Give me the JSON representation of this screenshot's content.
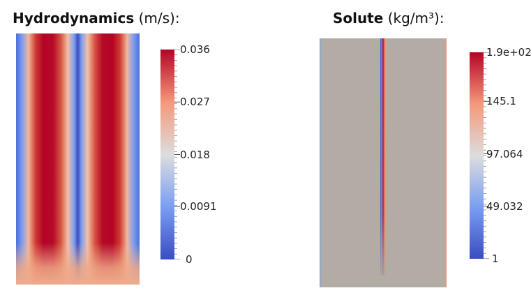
{
  "panels": [
    {
      "title": "Hydrodynamics",
      "unit": "(m/s):"
    },
    {
      "title": "Solute",
      "unit": "(kg/m³):"
    }
  ],
  "chart_data": [
    {
      "type": "heatmap",
      "title": "Hydrodynamics (m/s):",
      "colormap": "cool-to-warm",
      "colorbar": {
        "range": [
          0,
          0.036
        ],
        "tick_values": [
          0,
          0.0091,
          0.018,
          0.027,
          0.036
        ],
        "tick_labels": [
          "0",
          "0.0091",
          "0.018",
          "0.027",
          "0.036"
        ]
      },
      "colors": {
        "low": "#3b4cc0",
        "mid": "#dddddd",
        "high": "#b40426"
      }
    },
    {
      "type": "heatmap",
      "title": "Solute (kg/m³):",
      "colormap": "cool-to-warm",
      "colorbar": {
        "range": [
          1,
          190
        ],
        "tick_values": [
          1,
          49.032,
          97.064,
          145.1,
          190
        ],
        "tick_labels": [
          "1",
          "49.032",
          "97.064",
          "145.1",
          "1.9e+02"
        ]
      },
      "colors": {
        "low": "#3b4cc0",
        "mid": "#dddddd",
        "high": "#b40426",
        "background": "#b2aca4"
      }
    }
  ]
}
